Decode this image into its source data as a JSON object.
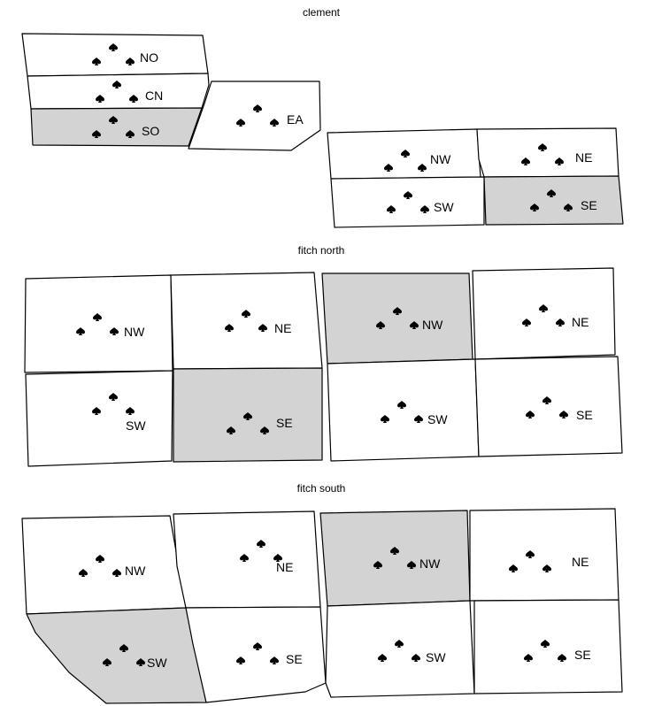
{
  "colors": {
    "fill_shaded": "#d3d3d3",
    "fill_plain": "#ffffff",
    "stroke": "#000000",
    "marker": "#000000"
  },
  "marker_icon": "spade-icon",
  "groups": [
    {
      "title": "clement",
      "plots": [
        {
          "label": "NO",
          "shaded": false
        },
        {
          "label": "CN",
          "shaded": false
        },
        {
          "label": "SO",
          "shaded": true
        },
        {
          "label": "EA",
          "shaded": false
        },
        {
          "label": "NW",
          "shaded": false
        },
        {
          "label": "NE",
          "shaded": false
        },
        {
          "label": "SW",
          "shaded": false
        },
        {
          "label": "SE",
          "shaded": true
        }
      ]
    },
    {
      "title": "fitch north",
      "plots": [
        {
          "label": "NW",
          "shaded": false
        },
        {
          "label": "NE",
          "shaded": false
        },
        {
          "label": "SW",
          "shaded": false
        },
        {
          "label": "SE",
          "shaded": true
        },
        {
          "label": "NW",
          "shaded": true
        },
        {
          "label": "NE",
          "shaded": false
        },
        {
          "label": "SW",
          "shaded": false
        },
        {
          "label": "SE",
          "shaded": false
        }
      ]
    },
    {
      "title": "fitch south",
      "plots": [
        {
          "label": "NW",
          "shaded": false
        },
        {
          "label": "NE",
          "shaded": false
        },
        {
          "label": "SW",
          "shaded": true
        },
        {
          "label": "SE",
          "shaded": false
        },
        {
          "label": "NW",
          "shaded": true
        },
        {
          "label": "NE",
          "shaded": false
        },
        {
          "label": "SW",
          "shaded": false
        },
        {
          "label": "SE",
          "shaded": false
        }
      ]
    }
  ]
}
